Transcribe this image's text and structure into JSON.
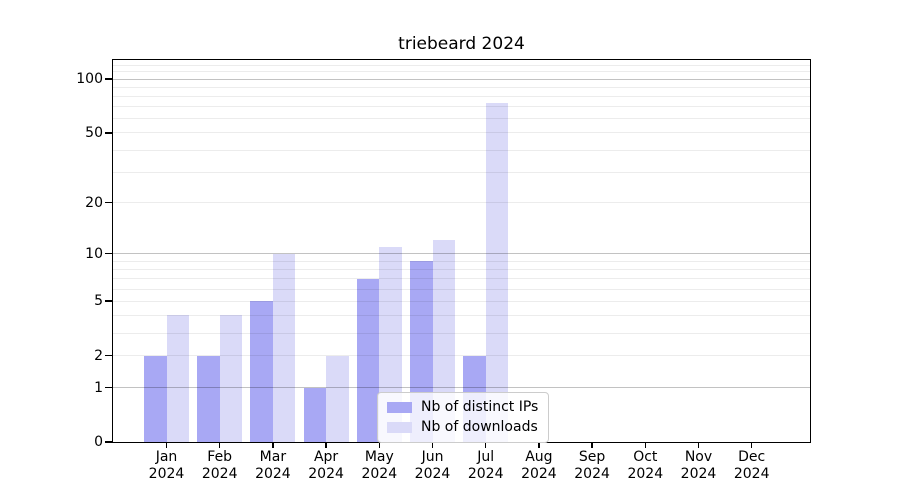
{
  "title": "triebeard 2024",
  "colors": {
    "distinct_ips_bar": "#a8a8f4",
    "downloads_bar": "#dadaf8",
    "grid_major": "#c4c4c4",
    "grid_minor": "#ececec",
    "axis": "#000000",
    "legend_border": "#cccccc"
  },
  "legend": {
    "items": [
      {
        "label": "Nb of distinct IPs",
        "swatch": "distinct-ips-swatch"
      },
      {
        "label": "Nb of downloads",
        "swatch": "downloads-swatch"
      }
    ]
  },
  "chart_data": {
    "type": "bar",
    "title": "triebeard 2024",
    "categories": [
      "Jan",
      "Feb",
      "Mar",
      "Apr",
      "May",
      "Jun",
      "Jul",
      "Aug",
      "Sep",
      "Oct",
      "Nov",
      "Dec"
    ],
    "year": "2024",
    "series": [
      {
        "name": "Nb of distinct IPs",
        "color": "#a8a8f4",
        "values": [
          2,
          2,
          5,
          1,
          7,
          9,
          2,
          0,
          0,
          0,
          0,
          0
        ]
      },
      {
        "name": "Nb of downloads",
        "color": "#dadaf8",
        "values": [
          4,
          4,
          10,
          2,
          11,
          12,
          74,
          0,
          0,
          0,
          0,
          0
        ]
      }
    ],
    "xlabel": "",
    "ylabel": "",
    "yscale": "log10(value+1)",
    "yticks": [
      0,
      1,
      2,
      5,
      10,
      20,
      50,
      100
    ],
    "grid_major_values": [
      1,
      10,
      100
    ],
    "grid_minor_values": [
      2,
      3,
      4,
      5,
      6,
      7,
      8,
      9,
      20,
      30,
      40,
      50,
      60,
      70,
      80,
      90,
      110,
      120
    ],
    "ylim": [
      0,
      128
    ],
    "grid": "horizontal",
    "legend_position": "lower center inside"
  }
}
